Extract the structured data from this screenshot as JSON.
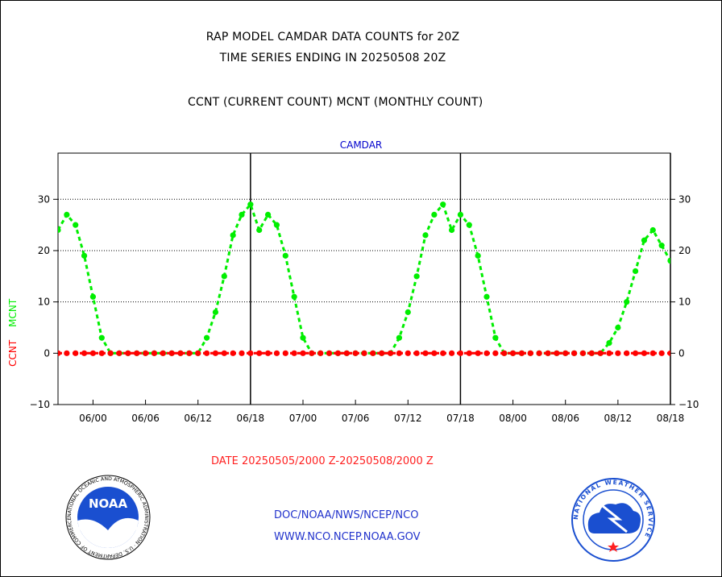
{
  "header": {
    "line1": "RAP MODEL CAMDAR DATA COUNTS for 20Z",
    "line2": "TIME SERIES ENDING IN 20250508 20Z",
    "line3": "CCNT (CURRENT COUNT) MCNT (MONTHLY COUNT)"
  },
  "footer": {
    "date_range": "DATE 20250505/2000 Z-20250508/2000 Z",
    "link1": "DOC/NOAA/NWS/NCEP/NCO",
    "link2": "WWW.NCO.NCEP.NOAA.GOV"
  },
  "logos": {
    "left_text": "NOAA",
    "left_ring": "NATIONAL OCEANIC AND ATMOSPHERIC ADMINISTRATION · U.S. DEPARTMENT OF COMMERCE",
    "right_ring": "NATIONAL WEATHER SERVICE"
  },
  "chart_data": {
    "type": "line",
    "title": "CAMDAR",
    "ylabel_series": [
      "CCNT",
      "MCNT"
    ],
    "ylim": [
      -10,
      39
    ],
    "yticks": [
      -10,
      0,
      10,
      20,
      30
    ],
    "xlim": [
      -4,
      66
    ],
    "x_tick_positions": [
      0,
      6,
      12,
      18,
      24,
      30,
      36,
      42,
      48,
      54,
      60,
      66
    ],
    "x_tick_labels": [
      "06/00",
      "06/06",
      "06/12",
      "06/18",
      "07/00",
      "07/06",
      "07/12",
      "07/18",
      "08/00",
      "08/06",
      "08/12",
      "08/18"
    ],
    "day_boundaries_hours": [
      18,
      42,
      66
    ],
    "grid_y": [
      10,
      20,
      30
    ],
    "colors": {
      "CCNT": "#ff0000",
      "MCNT": "#00ee00",
      "title": "#0000cc",
      "axis": "#000000"
    },
    "series": [
      {
        "name": "CCNT",
        "x": [
          -4,
          -3,
          -2,
          -1,
          0,
          1,
          2,
          3,
          4,
          5,
          6,
          7,
          8,
          9,
          10,
          11,
          12,
          13,
          14,
          15,
          16,
          17,
          18,
          19,
          20,
          21,
          22,
          23,
          24,
          25,
          26,
          27,
          28,
          29,
          30,
          31,
          32,
          33,
          34,
          35,
          36,
          37,
          38,
          39,
          40,
          41,
          42,
          43,
          44,
          45,
          46,
          47,
          48,
          49,
          50,
          51,
          52,
          53,
          54,
          55,
          56,
          57,
          58,
          59,
          60,
          61,
          62,
          63,
          64,
          65,
          66
        ],
        "values": [
          0,
          0,
          0,
          0,
          0,
          0,
          0,
          0,
          0,
          0,
          0,
          0,
          0,
          0,
          0,
          0,
          0,
          0,
          0,
          0,
          0,
          0,
          0,
          0,
          0,
          0,
          0,
          0,
          0,
          0,
          0,
          0,
          0,
          0,
          0,
          0,
          0,
          0,
          0,
          0,
          0,
          0,
          0,
          0,
          0,
          0,
          0,
          0,
          0,
          0,
          0,
          0,
          0,
          0,
          0,
          0,
          0,
          0,
          0,
          0,
          0,
          0,
          0,
          0,
          0,
          0,
          0,
          0,
          0,
          0,
          0
        ]
      },
      {
        "name": "MCNT",
        "x": [
          -4,
          -3,
          -2,
          -1,
          0,
          1,
          2,
          3,
          4,
          5,
          6,
          7,
          8,
          9,
          10,
          11,
          12,
          13,
          14,
          15,
          16,
          17,
          18,
          19,
          20,
          21,
          22,
          23,
          24,
          25,
          26,
          27,
          28,
          29,
          30,
          31,
          32,
          33,
          34,
          35,
          36,
          37,
          38,
          39,
          40,
          41,
          42,
          43,
          44,
          45,
          46,
          47,
          48,
          49,
          50,
          51,
          52,
          53,
          54,
          55,
          56,
          57,
          58,
          59,
          60,
          61,
          62,
          63,
          64,
          65,
          66
        ],
        "values": [
          24,
          27,
          25,
          19,
          11,
          3,
          0,
          0,
          0,
          0,
          0,
          0,
          0,
          0,
          0,
          0,
          0,
          3,
          8,
          15,
          23,
          27,
          29,
          24,
          27,
          25,
          19,
          11,
          3,
          0,
          0,
          0,
          0,
          0,
          0,
          0,
          0,
          0,
          0,
          3,
          8,
          15,
          23,
          27,
          29,
          24,
          27,
          25,
          19,
          11,
          3,
          0,
          0,
          0,
          0,
          0,
          0,
          0,
          0,
          0,
          0,
          0,
          0,
          2,
          5,
          10,
          16,
          22,
          24,
          21,
          18
        ]
      }
    ]
  }
}
